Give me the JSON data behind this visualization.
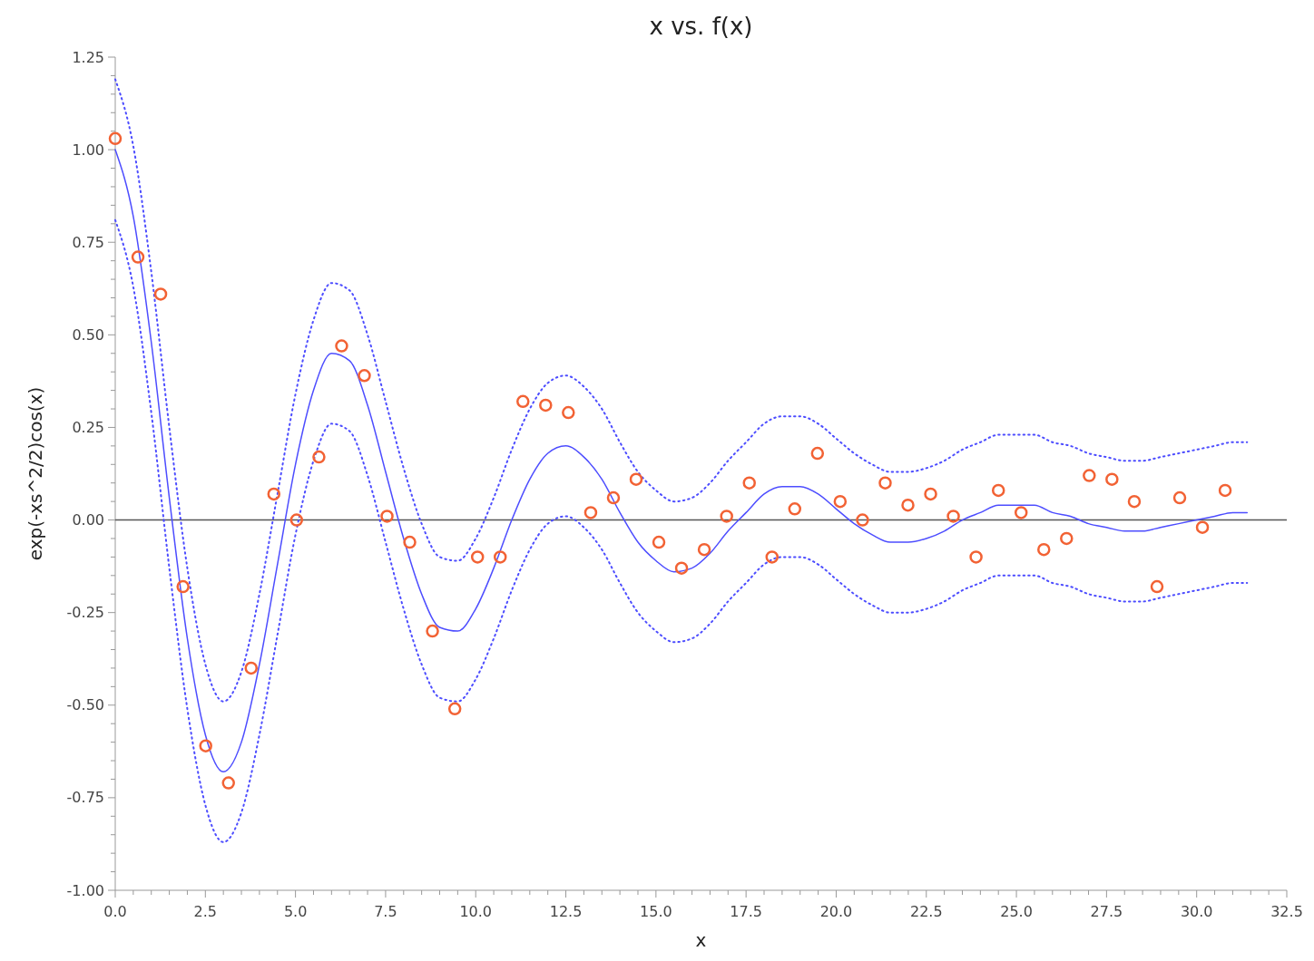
{
  "chart_data": {
    "type": "line",
    "title": "x vs. f(x)",
    "xlabel": "x",
    "ylabel": "exp(-xs^2/2)cos(x)",
    "xlim": [
      0,
      32.5
    ],
    "ylim": [
      -1,
      1.25
    ],
    "xticks": [
      {
        "value": 0,
        "label": "0.0"
      },
      {
        "value": 0.5,
        "label": null
      },
      {
        "value": 1,
        "label": null
      },
      {
        "value": 1.5,
        "label": null
      },
      {
        "value": 2,
        "label": null
      },
      {
        "value": 2.5,
        "label": "2.5"
      },
      {
        "value": 3,
        "label": null
      },
      {
        "value": 3.5,
        "label": null
      },
      {
        "value": 4,
        "label": null
      },
      {
        "value": 4.5,
        "label": null
      },
      {
        "value": 5,
        "label": "5.0"
      },
      {
        "value": 5.5,
        "label": null
      },
      {
        "value": 6,
        "label": null
      },
      {
        "value": 6.5,
        "label": null
      },
      {
        "value": 7,
        "label": null
      },
      {
        "value": 7.5,
        "label": "7.5"
      },
      {
        "value": 8,
        "label": null
      },
      {
        "value": 8.5,
        "label": null
      },
      {
        "value": 9,
        "label": null
      },
      {
        "value": 9.5,
        "label": null
      },
      {
        "value": 10,
        "label": "10.0"
      },
      {
        "value": 10.5,
        "label": null
      },
      {
        "value": 11,
        "label": null
      },
      {
        "value": 11.5,
        "label": null
      },
      {
        "value": 12,
        "label": null
      },
      {
        "value": 12.5,
        "label": "12.5"
      },
      {
        "value": 13,
        "label": null
      },
      {
        "value": 13.5,
        "label": null
      },
      {
        "value": 14,
        "label": null
      },
      {
        "value": 14.5,
        "label": null
      },
      {
        "value": 15,
        "label": "15.0"
      },
      {
        "value": 15.5,
        "label": null
      },
      {
        "value": 16,
        "label": null
      },
      {
        "value": 16.5,
        "label": null
      },
      {
        "value": 17,
        "label": null
      },
      {
        "value": 17.5,
        "label": "17.5"
      },
      {
        "value": 18,
        "label": null
      },
      {
        "value": 18.5,
        "label": null
      },
      {
        "value": 19,
        "label": null
      },
      {
        "value": 19.5,
        "label": null
      },
      {
        "value": 20,
        "label": "20.0"
      },
      {
        "value": 20.5,
        "label": null
      },
      {
        "value": 21,
        "label": null
      },
      {
        "value": 21.5,
        "label": null
      },
      {
        "value": 22,
        "label": null
      },
      {
        "value": 22.5,
        "label": "22.5"
      },
      {
        "value": 23,
        "label": null
      },
      {
        "value": 23.5,
        "label": null
      },
      {
        "value": 24,
        "label": null
      },
      {
        "value": 24.5,
        "label": null
      },
      {
        "value": 25,
        "label": "25.0"
      },
      {
        "value": 25.5,
        "label": null
      },
      {
        "value": 26,
        "label": null
      },
      {
        "value": 26.5,
        "label": null
      },
      {
        "value": 27,
        "label": null
      },
      {
        "value": 27.5,
        "label": "27.5"
      },
      {
        "value": 28,
        "label": null
      },
      {
        "value": 28.5,
        "label": null
      },
      {
        "value": 29,
        "label": null
      },
      {
        "value": 29.5,
        "label": null
      },
      {
        "value": 30,
        "label": "30.0"
      },
      {
        "value": 30.5,
        "label": null
      },
      {
        "value": 31,
        "label": null
      },
      {
        "value": 31.5,
        "label": null
      },
      {
        "value": 32,
        "label": null
      },
      {
        "value": 32.5,
        "label": "32.5"
      }
    ],
    "yticks": [
      {
        "value": -1,
        "label": "-1.00"
      },
      {
        "value": -0.95,
        "label": null
      },
      {
        "value": -0.9,
        "label": null
      },
      {
        "value": -0.85,
        "label": null
      },
      {
        "value": -0.8,
        "label": null
      },
      {
        "value": -0.75,
        "label": "-0.75"
      },
      {
        "value": -0.7,
        "label": null
      },
      {
        "value": -0.65,
        "label": null
      },
      {
        "value": -0.6,
        "label": null
      },
      {
        "value": -0.55,
        "label": null
      },
      {
        "value": -0.5,
        "label": "-0.50"
      },
      {
        "value": -0.45,
        "label": null
      },
      {
        "value": -0.4,
        "label": null
      },
      {
        "value": -0.35,
        "label": null
      },
      {
        "value": -0.3,
        "label": null
      },
      {
        "value": -0.25,
        "label": "-0.25"
      },
      {
        "value": -0.2,
        "label": null
      },
      {
        "value": -0.15,
        "label": null
      },
      {
        "value": -0.1,
        "label": null
      },
      {
        "value": -0.05,
        "label": null
      },
      {
        "value": 0,
        "label": "0.00"
      },
      {
        "value": 0.05,
        "label": null
      },
      {
        "value": 0.1,
        "label": null
      },
      {
        "value": 0.15,
        "label": null
      },
      {
        "value": 0.2,
        "label": null
      },
      {
        "value": 0.25,
        "label": "0.25"
      },
      {
        "value": 0.3,
        "label": null
      },
      {
        "value": 0.35,
        "label": null
      },
      {
        "value": 0.4,
        "label": null
      },
      {
        "value": 0.45,
        "label": null
      },
      {
        "value": 0.5,
        "label": "0.50"
      },
      {
        "value": 0.55,
        "label": null
      },
      {
        "value": 0.6,
        "label": null
      },
      {
        "value": 0.65,
        "label": null
      },
      {
        "value": 0.7,
        "label": null
      },
      {
        "value": 0.75,
        "label": "0.75"
      },
      {
        "value": 0.8,
        "label": null
      },
      {
        "value": 0.85,
        "label": null
      },
      {
        "value": 0.9,
        "label": null
      },
      {
        "value": 0.95,
        "label": null
      },
      {
        "value": 1,
        "label": "1.00"
      },
      {
        "value": 1.05,
        "label": null
      },
      {
        "value": 1.1,
        "label": null
      },
      {
        "value": 1.15,
        "label": null
      },
      {
        "value": 1.2,
        "label": null
      },
      {
        "value": 1.25,
        "label": "1.25"
      }
    ],
    "grid": false,
    "ref_lines": [
      {
        "axis": "y",
        "value": 0,
        "color": "#555555"
      }
    ],
    "series": [
      {
        "color": "#4d4dff",
        "line_style": "solid",
        "marker": "none",
        "x": [
          0,
          0.5,
          1,
          1.5,
          2,
          2.5,
          3,
          3.5,
          4,
          4.5,
          5,
          5.5,
          6,
          6.5,
          7,
          7.5,
          8,
          8.5,
          9,
          9.5,
          10,
          10.5,
          11,
          11.5,
          12,
          12.5,
          13,
          13.5,
          14,
          14.5,
          15,
          15.5,
          16,
          16.5,
          17,
          17.5,
          18,
          18.5,
          19,
          19.5,
          20,
          20.5,
          21,
          21.5,
          22,
          22.5,
          23,
          23.5,
          24,
          24.5,
          25,
          25.5,
          26,
          26.5,
          27,
          27.5,
          28,
          28.5,
          29,
          29.5,
          30,
          30.5,
          31,
          31.4
        ],
        "values": [
          1,
          0.82,
          0.48,
          0.06,
          -0.32,
          -0.58,
          -0.68,
          -0.6,
          -0.39,
          -0.12,
          0.15,
          0.35,
          0.45,
          0.43,
          0.31,
          0.13,
          -0.05,
          -0.2,
          -0.29,
          -0.3,
          -0.24,
          -0.13,
          0,
          0.11,
          0.18,
          0.2,
          0.17,
          0.11,
          0.02,
          -0.06,
          -0.11,
          -0.14,
          -0.13,
          -0.09,
          -0.03,
          0.02,
          0.07,
          0.09,
          0.09,
          0.07,
          0.03,
          -0.01,
          -0.04,
          -0.06,
          -0.06,
          -0.05,
          -0.03,
          0,
          0.02,
          0.04,
          0.04,
          0.04,
          0.02,
          0.01,
          -0.01,
          -0.02,
          -0.03,
          -0.03,
          -0.02,
          -0.01,
          0,
          0.01,
          0.02,
          0.02
        ]
      },
      {
        "type": "line",
        "color": "#4d4dff",
        "line_style": "dotted",
        "marker": "none",
        "x": [
          0,
          0.5,
          1,
          1.5,
          2,
          2.5,
          3,
          3.5,
          4,
          4.5,
          5,
          5.5,
          6,
          6.5,
          7,
          7.5,
          8,
          8.5,
          9,
          9.5,
          10,
          10.5,
          11,
          11.5,
          12,
          12.5,
          13,
          13.5,
          14,
          14.5,
          15,
          15.5,
          16,
          16.5,
          17,
          17.5,
          18,
          18.5,
          19,
          19.5,
          20,
          20.5,
          21,
          21.5,
          22,
          22.5,
          23,
          23.5,
          24,
          24.5,
          25,
          25.5,
          26,
          26.5,
          27,
          27.5,
          28,
          28.5,
          29,
          29.5,
          30,
          30.5,
          31,
          31.4
        ],
        "values": [
          1.19,
          1.01,
          0.67,
          0.25,
          -0.13,
          -0.39,
          -0.49,
          -0.41,
          -0.2,
          0.07,
          0.34,
          0.54,
          0.64,
          0.62,
          0.5,
          0.32,
          0.14,
          -0.01,
          -0.1,
          -0.11,
          -0.05,
          0.06,
          0.19,
          0.3,
          0.37,
          0.39,
          0.36,
          0.3,
          0.21,
          0.13,
          0.08,
          0.05,
          0.06,
          0.1,
          0.16,
          0.21,
          0.26,
          0.28,
          0.28,
          0.26,
          0.22,
          0.18,
          0.15,
          0.13,
          0.13,
          0.14,
          0.16,
          0.19,
          0.21,
          0.23,
          0.23,
          0.23,
          0.21,
          0.2,
          0.18,
          0.17,
          0.16,
          0.16,
          0.17,
          0.18,
          0.19,
          0.2,
          0.21,
          0.21
        ]
      },
      {
        "type": "line",
        "color": "#4d4dff",
        "line_style": "dotted",
        "marker": "none",
        "x": [
          0,
          0.5,
          1,
          1.5,
          2,
          2.5,
          3,
          3.5,
          4,
          4.5,
          5,
          5.5,
          6,
          6.5,
          7,
          7.5,
          8,
          8.5,
          9,
          9.5,
          10,
          10.5,
          11,
          11.5,
          12,
          12.5,
          13,
          13.5,
          14,
          14.5,
          15,
          15.5,
          16,
          16.5,
          17,
          17.5,
          18,
          18.5,
          19,
          19.5,
          20,
          20.5,
          21,
          21.5,
          22,
          22.5,
          23,
          23.5,
          24,
          24.5,
          25,
          25.5,
          26,
          26.5,
          27,
          27.5,
          28,
          28.5,
          29,
          29.5,
          30,
          30.5,
          31,
          31.4
        ],
        "values": [
          0.81,
          0.63,
          0.29,
          -0.13,
          -0.51,
          -0.77,
          -0.87,
          -0.79,
          -0.58,
          -0.31,
          -0.04,
          0.16,
          0.26,
          0.24,
          0.12,
          -0.06,
          -0.24,
          -0.39,
          -0.48,
          -0.49,
          -0.43,
          -0.32,
          -0.19,
          -0.08,
          -0.01,
          0.01,
          -0.02,
          -0.08,
          -0.17,
          -0.25,
          -0.3,
          -0.33,
          -0.32,
          -0.28,
          -0.22,
          -0.17,
          -0.12,
          -0.1,
          -0.1,
          -0.12,
          -0.16,
          -0.2,
          -0.23,
          -0.25,
          -0.25,
          -0.24,
          -0.22,
          -0.19,
          -0.17,
          -0.15,
          -0.15,
          -0.15,
          -0.17,
          -0.18,
          -0.2,
          -0.21,
          -0.22,
          -0.22,
          -0.21,
          -0.2,
          -0.19,
          -0.18,
          -0.17,
          -0.17
        ]
      },
      {
        "type": "scatter",
        "color": "#f26234",
        "marker": "circle",
        "x": [
          0,
          0.63,
          1.26,
          1.88,
          2.51,
          3.14,
          3.77,
          4.4,
          5.03,
          5.65,
          6.28,
          6.91,
          7.54,
          8.17,
          8.8,
          9.42,
          10.05,
          10.68,
          11.31,
          11.94,
          12.57,
          13.19,
          13.82,
          14.45,
          15.08,
          15.71,
          16.34,
          16.96,
          17.59,
          18.22,
          18.85,
          19.48,
          20.11,
          20.73,
          21.36,
          21.99,
          22.62,
          23.25,
          23.88,
          24.5,
          25.13,
          25.76,
          26.39,
          27.02,
          27.65,
          28.27,
          28.9,
          29.53,
          30.16,
          30.79
        ],
        "values": [
          1.03,
          0.71,
          0.61,
          -0.18,
          -0.61,
          -0.71,
          -0.4,
          0.07,
          0,
          0.17,
          0.47,
          0.39,
          0.01,
          -0.06,
          -0.3,
          -0.51,
          -0.1,
          -0.1,
          0.32,
          0.31,
          0.29,
          0.02,
          0.06,
          0.11,
          -0.06,
          -0.13,
          -0.08,
          0.01,
          0.1,
          -0.1,
          0.03,
          0.18,
          0.05,
          0,
          0.1,
          0.04,
          0.07,
          0.01,
          -0.1,
          0.08,
          0.02,
          -0.08,
          -0.05,
          0.12,
          0.11,
          0.05,
          -0.18,
          0.06,
          -0.02,
          0.08
        ]
      }
    ]
  }
}
